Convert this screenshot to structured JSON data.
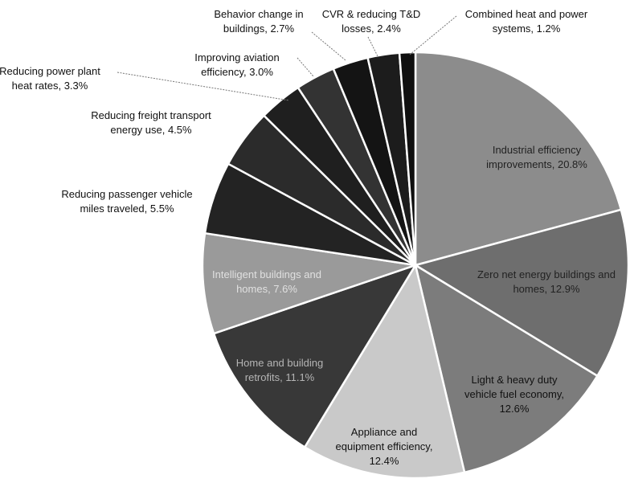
{
  "chart_data": {
    "type": "pie",
    "values": [
      20.8,
      12.9,
      12.6,
      12.4,
      11.1,
      7.6,
      5.5,
      4.5,
      3.3,
      3.0,
      2.7,
      2.4,
      1.2
    ],
    "value_labels": [
      [
        "Industrial efficiency",
        "improvements, 20.8%"
      ],
      [
        "Zero net energy buildings and",
        "homes, 12.9%"
      ],
      [
        "Light & heavy duty",
        "vehicle fuel economy,",
        "12.6%"
      ],
      [
        "Appliance and",
        "equipment efficiency,",
        "12.4%"
      ],
      [
        "Home and building",
        "retrofits, 11.1%"
      ],
      [
        "Intelligent buildings and",
        "homes, 7.6%"
      ],
      [
        "Reducing passenger vehicle",
        "miles traveled, 5.5%"
      ],
      [
        "Reducing freight transport",
        "energy use, 4.5%"
      ],
      [
        "Reducing power plant",
        "heat rates, 3.3%"
      ],
      [
        "Improving aviation",
        "efficiency, 3.0%"
      ],
      [
        "Behavior change in",
        "buildings, 2.7%"
      ],
      [
        "CVR & reducing T&D",
        "losses, 2.4%"
      ],
      [
        "Combined heat and power",
        "systems, 1.2%"
      ]
    ],
    "colors": [
      "#8c8c8c",
      "#6e6e6e",
      "#7c7c7c",
      "#c9c9c9",
      "#383838",
      "#9a9a9a",
      "#232323",
      "#2b2b2b",
      "#1f1f1f",
      "#333333",
      "#141414",
      "#1c1c1c",
      "#0f0f0f"
    ]
  }
}
